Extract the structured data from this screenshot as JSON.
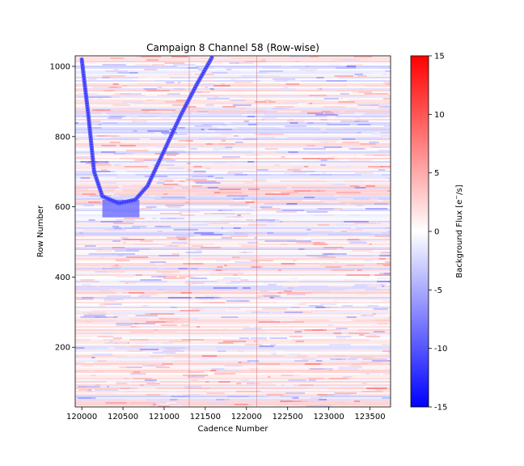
{
  "chart_data": {
    "type": "heatmap",
    "title": "Campaign 8 Channel 58 (Row-wise)",
    "xlabel": "Cadence Number",
    "ylabel": "Row Number",
    "xlim": [
      119920,
      123750
    ],
    "ylim": [
      30,
      1030
    ],
    "x_ticks": [
      120000,
      120500,
      121000,
      121500,
      122000,
      122500,
      123000,
      123500
    ],
    "y_ticks": [
      200,
      400,
      600,
      800,
      1000
    ],
    "colorbar": {
      "label": "Background Flux [e$^-$/s]",
      "range": [
        -15,
        15
      ],
      "ticks": [
        -15,
        -10,
        -5,
        0,
        5,
        10,
        15
      ],
      "colormap": "bwr",
      "colors": {
        "low": "#0000ff",
        "mid": "#ffffff",
        "high": "#ff0000"
      }
    },
    "features": [
      {
        "kind": "negative-arc",
        "path_cadence": [
          120000,
          120080,
          120150,
          120250,
          120450,
          120650,
          120800,
          121000,
          121200,
          121400,
          121580
        ],
        "path_row": [
          1020,
          860,
          700,
          630,
          610,
          620,
          660,
          760,
          860,
          950,
          1025
        ]
      },
      {
        "kind": "negative-band",
        "cadence_range": [
          120250,
          120700
        ],
        "row_range": [
          570,
          620
        ]
      },
      {
        "kind": "vertical-stripe",
        "cadence": [
          121300,
          122120
        ]
      }
    ]
  }
}
